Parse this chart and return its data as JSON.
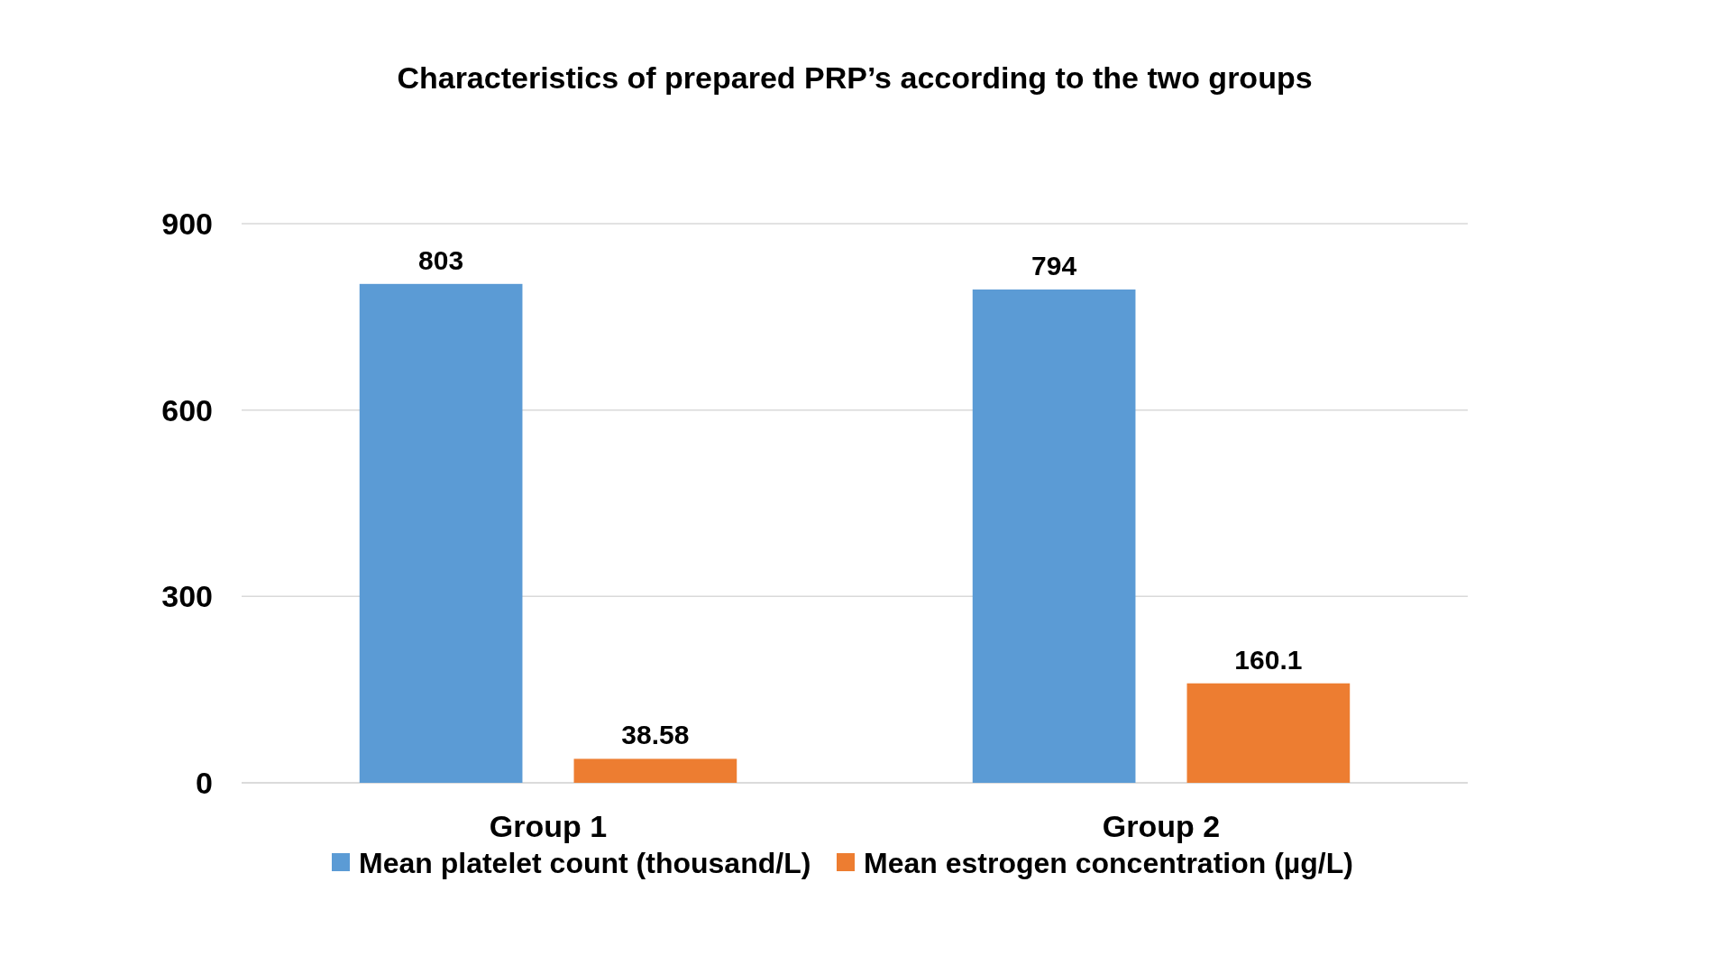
{
  "chart_data": {
    "type": "bar",
    "title": "Characteristics of prepared PRP’s according to the two groups",
    "categories": [
      "Group 1",
      "Group 2"
    ],
    "series": [
      {
        "name": "Mean platelet count (thousand/L)",
        "color": "#5b9bd5",
        "values": [
          803,
          794
        ]
      },
      {
        "name": "Mean estrogen concentration (µg/L)",
        "color": "#ed7d31",
        "values": [
          38.58,
          160.1
        ]
      }
    ],
    "ylim": [
      0,
      900
    ],
    "yticks": [
      0,
      300,
      600,
      900
    ],
    "grid": "y",
    "legend": "bottom",
    "data_labels": true
  }
}
